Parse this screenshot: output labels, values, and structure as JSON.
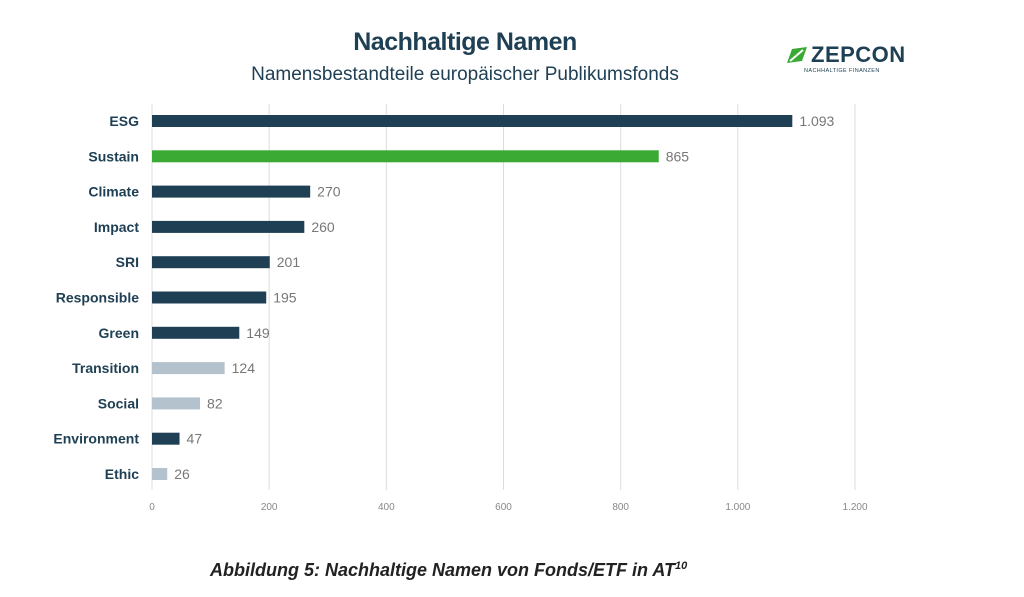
{
  "brand": {
    "name": "ZEPCON",
    "tagline": "NACHHALTIGE FINANZEN",
    "color": "#3aaa35"
  },
  "caption": {
    "text": "Abbildung 5: Nachhaltige Namen von Fonds/ETF in AT",
    "footnote": "10"
  },
  "chart_data": {
    "type": "bar",
    "orientation": "horizontal",
    "title": "Nachhaltige Namen",
    "subtitle": "Namensbestandteile europäischer Publikumsfonds",
    "categories": [
      "ESG",
      "Sustain",
      "Climate",
      "Impact",
      "SRI",
      "Responsible",
      "Green",
      "Transition",
      "Social",
      "Environment",
      "Ethic"
    ],
    "values": [
      1093,
      865,
      270,
      260,
      201,
      195,
      149,
      124,
      82,
      47,
      26
    ],
    "value_labels": [
      "1.093",
      "865",
      "270",
      "260",
      "201",
      "195",
      "149",
      "124",
      "82",
      "47",
      "26"
    ],
    "bar_colors": [
      "#1f4054",
      "#3aaa35",
      "#1f4054",
      "#1f4054",
      "#1f4054",
      "#1f4054",
      "#1f4054",
      "#b4c2cd",
      "#b4c2cd",
      "#1f4054",
      "#b4c2cd"
    ],
    "xlim": [
      0,
      1200
    ],
    "xticks": [
      0,
      200,
      400,
      600,
      800,
      1000,
      1200
    ],
    "xtick_labels": [
      "0",
      "200",
      "400",
      "600",
      "800",
      "1.000",
      "1.200"
    ],
    "grid": "vertical",
    "legend": "none"
  }
}
